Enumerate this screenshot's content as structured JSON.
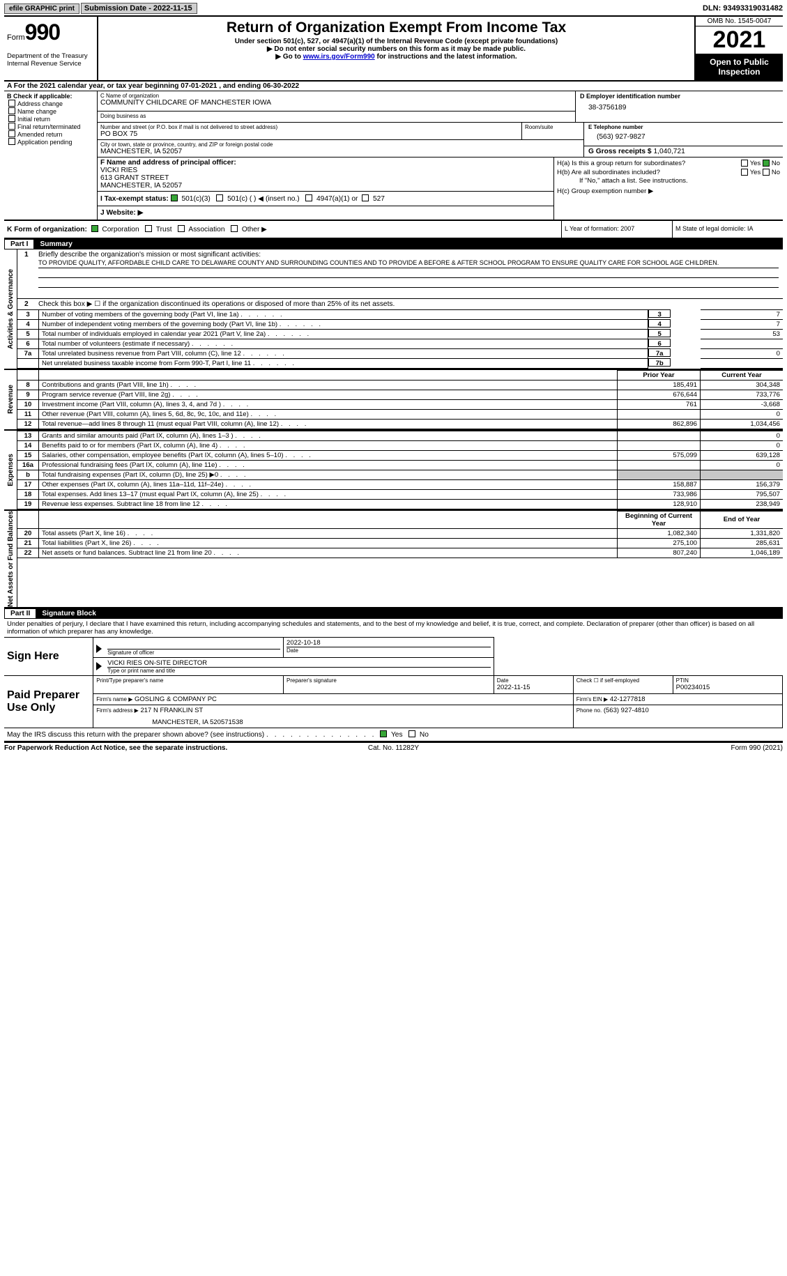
{
  "topbar": {
    "efile": "efile GRAPHIC print",
    "sub_date_label": "Submission Date - 2022-11-15",
    "dln": "DLN: 93493319031482"
  },
  "header": {
    "form_word": "Form",
    "form_num": "990",
    "dept": "Department of the Treasury",
    "irs": "Internal Revenue Service",
    "title": "Return of Organization Exempt From Income Tax",
    "sub1": "Under section 501(c), 527, or 4947(a)(1) of the Internal Revenue Code (except private foundations)",
    "sub2": "▶ Do not enter social security numbers on this form as it may be made public.",
    "sub3_pre": "▶ Go to ",
    "sub3_link": "www.irs.gov/Form990",
    "sub3_post": " for instructions and the latest information.",
    "omb": "OMB No. 1545-0047",
    "year": "2021",
    "open": "Open to Public Inspection"
  },
  "A": "A For the 2021 calendar year, or tax year beginning 07-01-2021    , and ending 06-30-2022",
  "B": {
    "label": "B Check if applicable:",
    "opts": [
      "Address change",
      "Name change",
      "Initial return",
      "Final return/terminated",
      "Amended return",
      "Application pending"
    ]
  },
  "C": {
    "name_label": "C Name of organization",
    "name": "COMMUNITY CHILDCARE OF MANCHESTER IOWA",
    "dba_label": "Doing business as",
    "dba": "",
    "street_label": "Number and street (or P.O. box if mail is not delivered to street address)",
    "room_label": "Room/suite",
    "street": "PO BOX 75",
    "city_label": "City or town, state or province, country, and ZIP or foreign postal code",
    "city": "MANCHESTER, IA  52057"
  },
  "D": {
    "label": "D Employer identification number",
    "val": "38-3756189"
  },
  "E": {
    "label": "E Telephone number",
    "val": "(563) 927-9827"
  },
  "G": {
    "label": "G Gross receipts $",
    "val": "1,040,721"
  },
  "F": {
    "label": "F Name and address of principal officer:",
    "l1": "VICKI RIES",
    "l2": "613 GRANT STREET",
    "l3": "MANCHESTER, IA  52057"
  },
  "I": {
    "label": "I  Tax-exempt status:",
    "c1": "501(c)(3)",
    "c2": "501(c) (  ) ◀ (insert no.)",
    "c3": "4947(a)(1) or",
    "c4": "527"
  },
  "J": {
    "label": "J  Website: ▶"
  },
  "H": {
    "a": "H(a)  Is this a group return for subordinates?",
    "b": "H(b)  Are all subordinates included?",
    "if_no": "If \"No,\" attach a list. See instructions.",
    "c": "H(c)  Group exemption number ▶",
    "yes": "Yes",
    "no": "No"
  },
  "K": {
    "label": "K Form of organization:",
    "opts": [
      "Corporation",
      "Trust",
      "Association",
      "Other ▶"
    ],
    "L": "L Year of formation: 2007",
    "M": "M State of legal domicile: IA"
  },
  "part1": {
    "label_num": "Part I",
    "label_txt": "Summary",
    "side1": "Activities & Governance",
    "side2": "Revenue",
    "side3": "Expenses",
    "side4": "Net Assets or Fund Balances",
    "m_label": "Briefly describe the organization's mission or most significant activities:",
    "mission": "TO PROVIDE QUALITY, AFFORDABLE CHILD CARE TO DELAWARE COUNTY AND SURROUNDING COUNTIES AND TO PROVIDE A BEFORE & AFTER SCHOOL PROGRAM TO ENSURE QUALITY CARE FOR SCHOOL AGE CHILDREN.",
    "l2": "Check this box ▶ ☐ if the organization discontinued its operations or disposed of more than 25% of its net assets.",
    "rows_top": [
      {
        "n": "3",
        "d": "Number of voting members of the governing body (Part VI, line 1a)",
        "box": "3",
        "v": "7"
      },
      {
        "n": "4",
        "d": "Number of independent voting members of the governing body (Part VI, line 1b)",
        "box": "4",
        "v": "7"
      },
      {
        "n": "5",
        "d": "Total number of individuals employed in calendar year 2021 (Part V, line 2a)",
        "box": "5",
        "v": "53"
      },
      {
        "n": "6",
        "d": "Total number of volunteers (estimate if necessary)",
        "box": "6",
        "v": ""
      },
      {
        "n": "7a",
        "d": "Total unrelated business revenue from Part VIII, column (C), line 12",
        "box": "7a",
        "v": "0"
      },
      {
        "n": "",
        "d": "Net unrelated business taxable income from Form 990-T, Part I, line 11",
        "box": "7b",
        "v": ""
      }
    ],
    "col_hdr_py": "Prior Year",
    "col_hdr_cy": "Current Year",
    "rows_rev": [
      {
        "n": "8",
        "d": "Contributions and grants (Part VIII, line 1h)",
        "py": "185,491",
        "cy": "304,348"
      },
      {
        "n": "9",
        "d": "Program service revenue (Part VIII, line 2g)",
        "py": "676,644",
        "cy": "733,776"
      },
      {
        "n": "10",
        "d": "Investment income (Part VIII, column (A), lines 3, 4, and 7d )",
        "py": "761",
        "cy": "-3,668"
      },
      {
        "n": "11",
        "d": "Other revenue (Part VIII, column (A), lines 5, 6d, 8c, 9c, 10c, and 11e)",
        "py": "",
        "cy": "0"
      },
      {
        "n": "12",
        "d": "Total revenue—add lines 8 through 11 (must equal Part VIII, column (A), line 12)",
        "py": "862,896",
        "cy": "1,034,456"
      }
    ],
    "rows_exp": [
      {
        "n": "13",
        "d": "Grants and similar amounts paid (Part IX, column (A), lines 1–3 )",
        "py": "",
        "cy": "0"
      },
      {
        "n": "14",
        "d": "Benefits paid to or for members (Part IX, column (A), line 4)",
        "py": "",
        "cy": "0"
      },
      {
        "n": "15",
        "d": "Salaries, other compensation, employee benefits (Part IX, column (A), lines 5–10)",
        "py": "575,099",
        "cy": "639,128"
      },
      {
        "n": "16a",
        "d": "Professional fundraising fees (Part IX, column (A), line 11e)",
        "py": "",
        "cy": "0"
      },
      {
        "n": "b",
        "d": "Total fundraising expenses (Part IX, column (D), line 25) ▶0",
        "py": "SHADE",
        "cy": "SHADE"
      },
      {
        "n": "17",
        "d": "Other expenses (Part IX, column (A), lines 11a–11d, 11f–24e)",
        "py": "158,887",
        "cy": "156,379"
      },
      {
        "n": "18",
        "d": "Total expenses. Add lines 13–17 (must equal Part IX, column (A), line 25)",
        "py": "733,986",
        "cy": "795,507"
      },
      {
        "n": "19",
        "d": "Revenue less expenses. Subtract line 18 from line 12",
        "py": "128,910",
        "cy": "238,949"
      }
    ],
    "col_hdr_boy": "Beginning of Current Year",
    "col_hdr_eoy": "End of Year",
    "rows_net": [
      {
        "n": "20",
        "d": "Total assets (Part X, line 16)",
        "py": "1,082,340",
        "cy": "1,331,820"
      },
      {
        "n": "21",
        "d": "Total liabilities (Part X, line 26)",
        "py": "275,100",
        "cy": "285,631"
      },
      {
        "n": "22",
        "d": "Net assets or fund balances. Subtract line 21 from line 20",
        "py": "807,240",
        "cy": "1,046,189"
      }
    ]
  },
  "part2": {
    "label_num": "Part II",
    "label_txt": "Signature Block",
    "decl": "Under penalties of perjury, I declare that I have examined this return, including accompanying schedules and statements, and to the best of my knowledge and belief, it is true, correct, and complete. Declaration of preparer (other than officer) is based on all information of which preparer has any knowledge.",
    "sign_here": "Sign Here",
    "sig_officer": "Signature of officer",
    "sig_date": "2022-10-18",
    "date_lab": "Date",
    "typed": "VICKI RIES  ON-SITE DIRECTOR",
    "typed_lab": "Type or print name and title",
    "paid": "Paid Preparer Use Only",
    "prep_name_lab": "Print/Type preparer's name",
    "prep_sig_lab": "Preparer's signature",
    "prep_date_lab": "Date",
    "prep_date": "2022-11-15",
    "check_lab": "Check ☐ if self-employed",
    "ptin_lab": "PTIN",
    "ptin": "P00234015",
    "firm_name_lab": "Firm's name    ▶",
    "firm_name": "GOSLING & COMPANY PC",
    "firm_ein_lab": "Firm's EIN ▶",
    "firm_ein": "42-1277818",
    "firm_addr_lab": "Firm's address ▶",
    "firm_addr1": "217 N FRANKLIN ST",
    "firm_addr2": "MANCHESTER, IA  520571538",
    "firm_phone_lab": "Phone no.",
    "firm_phone": "(563) 927-4810",
    "may_irs": "May the IRS discuss this return with the preparer shown above? (see instructions)",
    "yes": "Yes",
    "no": "No"
  },
  "footer": {
    "l": "For Paperwork Reduction Act Notice, see the separate instructions.",
    "c": "Cat. No. 11282Y",
    "r": "Form 990 (2021)"
  }
}
